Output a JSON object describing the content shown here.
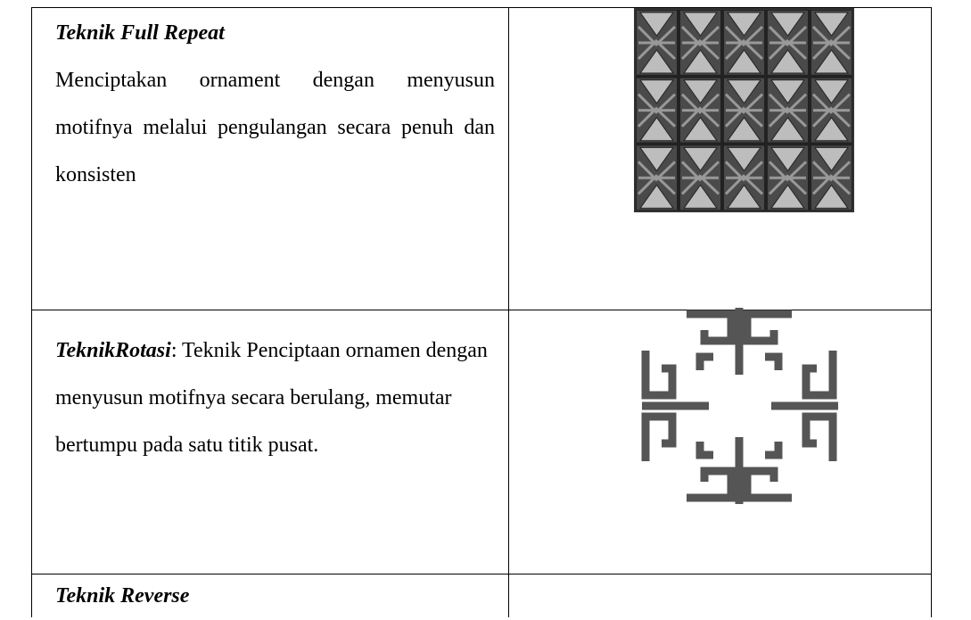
{
  "table": {
    "rows": [
      {
        "title": "Teknik Full Repeat",
        "description": "Menciptakan ornament dengan menyusun motifnya melalui pengulangan secara penuh dan konsisten"
      },
      {
        "title": "TeknikRotasi",
        "description": ": Teknik Penciptaan ornamen dengan menyusun motifnya secara berulang, memutar bertumpu pada satu titik pusat."
      },
      {
        "title": "Teknik Reverse"
      }
    ]
  }
}
